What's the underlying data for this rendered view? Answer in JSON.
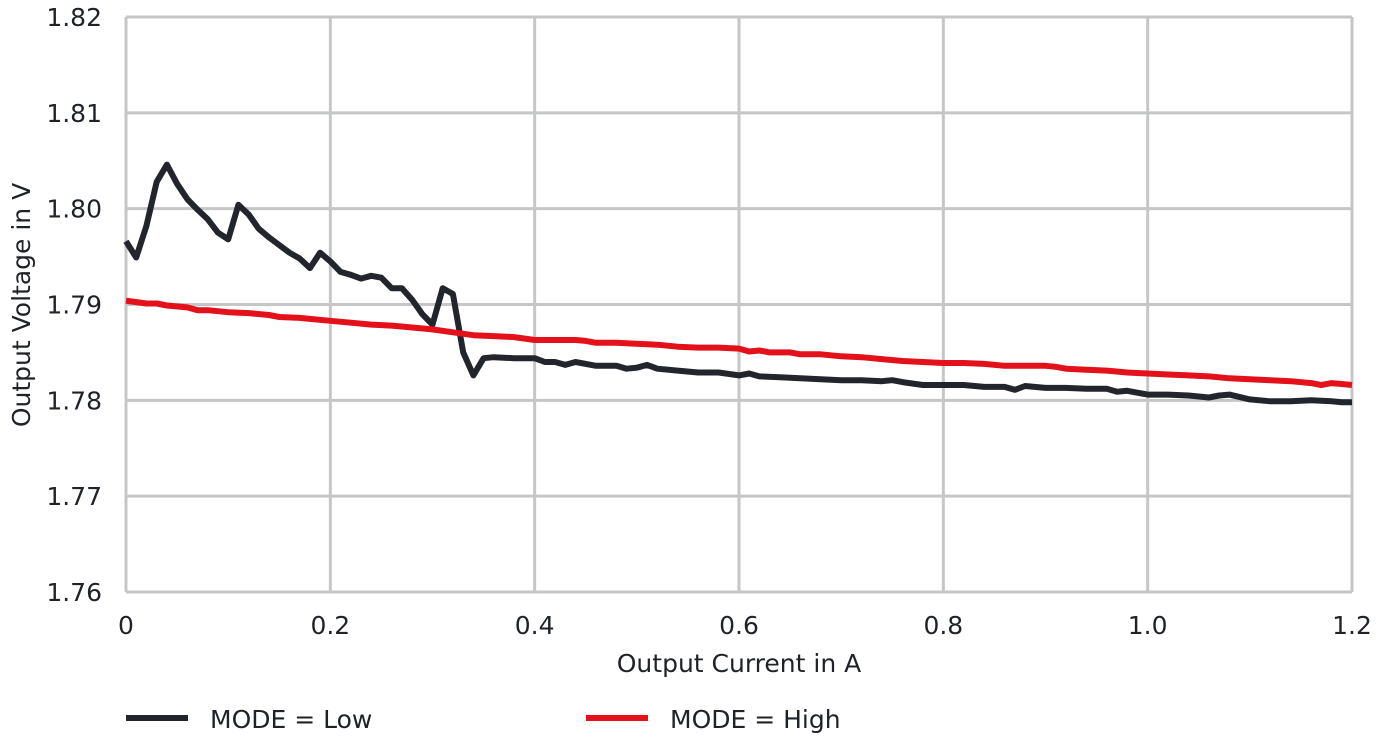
{
  "chart_data": {
    "type": "line",
    "title": "",
    "xlabel": "Output Current in A",
    "ylabel": "Output Voltage in V",
    "xlim": [
      0,
      1.2
    ],
    "ylim": [
      1.76,
      1.82
    ],
    "x_ticks": [
      "0",
      "0.2",
      "0.4",
      "0.6",
      "0.8",
      "1.0",
      "1.2"
    ],
    "y_ticks": [
      "1.76",
      "1.77",
      "1.78",
      "1.79",
      "1.80",
      "1.81",
      "1.82"
    ],
    "grid": true,
    "legend_position": "bottom",
    "series": [
      {
        "name": "MODE = Low",
        "color": "#22262c",
        "points": [
          [
            0.0,
            1.7966
          ],
          [
            0.01,
            1.7949
          ],
          [
            0.02,
            1.7982
          ],
          [
            0.03,
            1.8028
          ],
          [
            0.04,
            1.8046
          ],
          [
            0.05,
            1.8026
          ],
          [
            0.06,
            1.801
          ],
          [
            0.07,
            1.7999
          ],
          [
            0.08,
            1.7989
          ],
          [
            0.09,
            1.7975
          ],
          [
            0.1,
            1.7968
          ],
          [
            0.11,
            1.8004
          ],
          [
            0.12,
            1.7994
          ],
          [
            0.13,
            1.7979
          ],
          [
            0.14,
            1.797
          ],
          [
            0.15,
            1.7962
          ],
          [
            0.16,
            1.7954
          ],
          [
            0.17,
            1.7948
          ],
          [
            0.18,
            1.7938
          ],
          [
            0.19,
            1.7954
          ],
          [
            0.2,
            1.7945
          ],
          [
            0.21,
            1.7934
          ],
          [
            0.22,
            1.7931
          ],
          [
            0.23,
            1.7927
          ],
          [
            0.24,
            1.793
          ],
          [
            0.25,
            1.7928
          ],
          [
            0.26,
            1.7917
          ],
          [
            0.27,
            1.7917
          ],
          [
            0.28,
            1.7905
          ],
          [
            0.29,
            1.789
          ],
          [
            0.3,
            1.7879
          ],
          [
            0.31,
            1.7917
          ],
          [
            0.32,
            1.7911
          ],
          [
            0.33,
            1.785
          ],
          [
            0.34,
            1.7826
          ],
          [
            0.35,
            1.7844
          ],
          [
            0.36,
            1.7845
          ],
          [
            0.38,
            1.7844
          ],
          [
            0.4,
            1.7844
          ],
          [
            0.41,
            1.784
          ],
          [
            0.42,
            1.784
          ],
          [
            0.43,
            1.7837
          ],
          [
            0.44,
            1.784
          ],
          [
            0.46,
            1.7836
          ],
          [
            0.48,
            1.7836
          ],
          [
            0.49,
            1.7833
          ],
          [
            0.5,
            1.7834
          ],
          [
            0.51,
            1.7837
          ],
          [
            0.52,
            1.7833
          ],
          [
            0.54,
            1.7831
          ],
          [
            0.56,
            1.7829
          ],
          [
            0.58,
            1.7829
          ],
          [
            0.6,
            1.7826
          ],
          [
            0.61,
            1.7828
          ],
          [
            0.62,
            1.7825
          ],
          [
            0.64,
            1.7824
          ],
          [
            0.66,
            1.7823
          ],
          [
            0.68,
            1.7822
          ],
          [
            0.7,
            1.7821
          ],
          [
            0.72,
            1.7821
          ],
          [
            0.74,
            1.782
          ],
          [
            0.75,
            1.7821
          ],
          [
            0.76,
            1.7819
          ],
          [
            0.78,
            1.7816
          ],
          [
            0.8,
            1.7816
          ],
          [
            0.82,
            1.7816
          ],
          [
            0.84,
            1.7814
          ],
          [
            0.86,
            1.7814
          ],
          [
            0.87,
            1.7811
          ],
          [
            0.88,
            1.7815
          ],
          [
            0.9,
            1.7813
          ],
          [
            0.92,
            1.7813
          ],
          [
            0.94,
            1.7812
          ],
          [
            0.96,
            1.7812
          ],
          [
            0.97,
            1.7809
          ],
          [
            0.98,
            1.781
          ],
          [
            1.0,
            1.7806
          ],
          [
            1.02,
            1.7806
          ],
          [
            1.04,
            1.7805
          ],
          [
            1.06,
            1.7803
          ],
          [
            1.07,
            1.7805
          ],
          [
            1.08,
            1.7806
          ],
          [
            1.1,
            1.7801
          ],
          [
            1.12,
            1.7799
          ],
          [
            1.14,
            1.7799
          ],
          [
            1.16,
            1.78
          ],
          [
            1.18,
            1.7799
          ],
          [
            1.19,
            1.7798
          ],
          [
            1.2,
            1.7798
          ]
        ]
      },
      {
        "name": "MODE = High",
        "color": "#e2111a",
        "points": [
          [
            0.0,
            1.7904
          ],
          [
            0.02,
            1.7901
          ],
          [
            0.03,
            1.7901
          ],
          [
            0.04,
            1.7899
          ],
          [
            0.06,
            1.7897
          ],
          [
            0.07,
            1.7894
          ],
          [
            0.08,
            1.7894
          ],
          [
            0.1,
            1.7892
          ],
          [
            0.12,
            1.7891
          ],
          [
            0.14,
            1.7889
          ],
          [
            0.15,
            1.7887
          ],
          [
            0.17,
            1.7886
          ],
          [
            0.18,
            1.7885
          ],
          [
            0.2,
            1.7883
          ],
          [
            0.22,
            1.7881
          ],
          [
            0.24,
            1.7879
          ],
          [
            0.26,
            1.7878
          ],
          [
            0.28,
            1.7876
          ],
          [
            0.3,
            1.7874
          ],
          [
            0.32,
            1.7871
          ],
          [
            0.34,
            1.7868
          ],
          [
            0.36,
            1.7867
          ],
          [
            0.38,
            1.7866
          ],
          [
            0.4,
            1.7863
          ],
          [
            0.42,
            1.7863
          ],
          [
            0.44,
            1.7863
          ],
          [
            0.45,
            1.7862
          ],
          [
            0.46,
            1.786
          ],
          [
            0.48,
            1.786
          ],
          [
            0.5,
            1.7859
          ],
          [
            0.52,
            1.7858
          ],
          [
            0.54,
            1.7856
          ],
          [
            0.56,
            1.7855
          ],
          [
            0.58,
            1.7855
          ],
          [
            0.6,
            1.7854
          ],
          [
            0.61,
            1.7851
          ],
          [
            0.62,
            1.7852
          ],
          [
            0.63,
            1.785
          ],
          [
            0.65,
            1.785
          ],
          [
            0.66,
            1.7848
          ],
          [
            0.68,
            1.7848
          ],
          [
            0.7,
            1.7846
          ],
          [
            0.72,
            1.7845
          ],
          [
            0.74,
            1.7843
          ],
          [
            0.76,
            1.7841
          ],
          [
            0.78,
            1.784
          ],
          [
            0.8,
            1.7839
          ],
          [
            0.82,
            1.7839
          ],
          [
            0.84,
            1.7838
          ],
          [
            0.86,
            1.7836
          ],
          [
            0.88,
            1.7836
          ],
          [
            0.9,
            1.7836
          ],
          [
            0.91,
            1.7835
          ],
          [
            0.92,
            1.7833
          ],
          [
            0.94,
            1.7832
          ],
          [
            0.96,
            1.7831
          ],
          [
            0.98,
            1.7829
          ],
          [
            1.0,
            1.7828
          ],
          [
            1.02,
            1.7827
          ],
          [
            1.04,
            1.7826
          ],
          [
            1.06,
            1.7825
          ],
          [
            1.08,
            1.7823
          ],
          [
            1.1,
            1.7822
          ],
          [
            1.12,
            1.7821
          ],
          [
            1.14,
            1.782
          ],
          [
            1.16,
            1.7818
          ],
          [
            1.17,
            1.7816
          ],
          [
            1.18,
            1.7818
          ],
          [
            1.19,
            1.7817
          ],
          [
            1.2,
            1.7816
          ]
        ]
      }
    ]
  }
}
